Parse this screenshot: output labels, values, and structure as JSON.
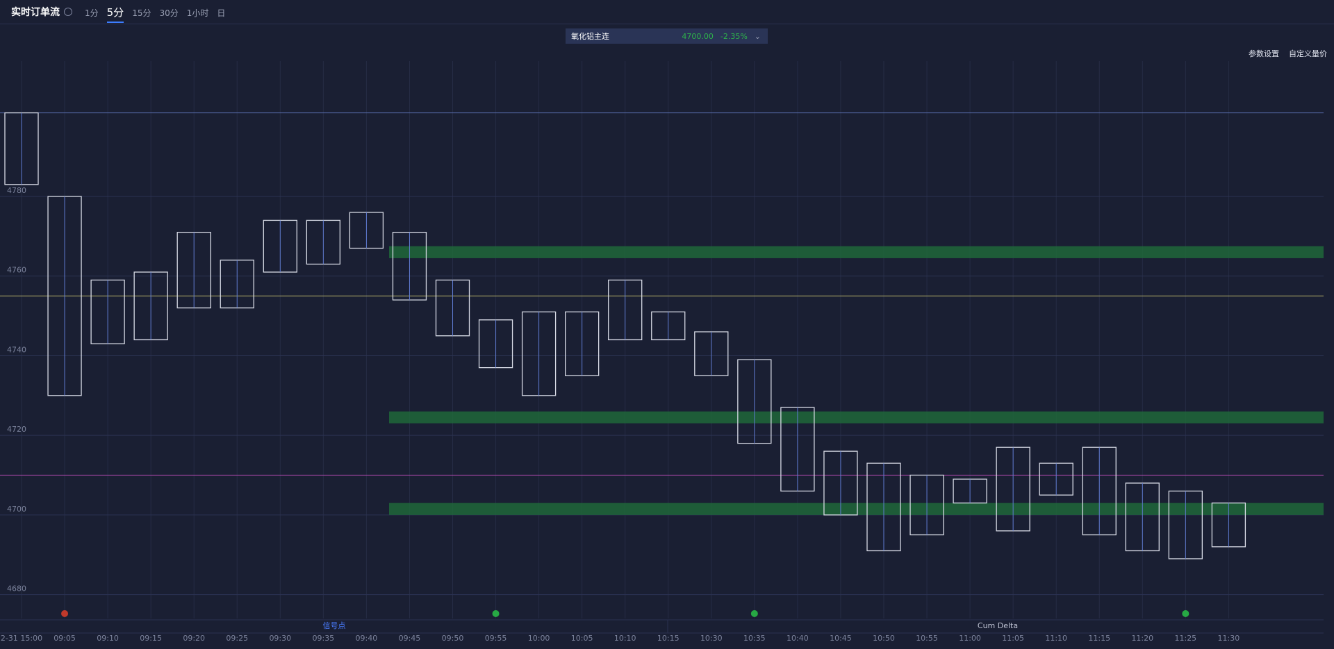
{
  "header": {
    "title": "实时订单流",
    "intervals": [
      "1分",
      "5分",
      "15分",
      "30分",
      "1小时",
      "日"
    ],
    "active_interval": "5分"
  },
  "symbol": {
    "name": "氧化铝主连",
    "price": "4700.00",
    "change": "-2.35%",
    "color": "#2db24a"
  },
  "toolbar": [
    "参数设置",
    "自定义量价"
  ],
  "panels": [
    "信号点",
    "Cum Delta"
  ],
  "chart_data": {
    "type": "footprint",
    "x": [
      "2-31 15:00",
      "09:05",
      "09:10",
      "09:15",
      "09:20",
      "09:25",
      "09:30",
      "09:35",
      "09:40",
      "09:45",
      "09:50",
      "09:55",
      "10:00",
      "10:05",
      "10:10",
      "10:15",
      "10:30",
      "10:35",
      "10:40",
      "10:45",
      "10:50",
      "10:55",
      "11:00",
      "11:05",
      "11:10",
      "11:15",
      "11:20",
      "11:25",
      "11:30"
    ],
    "high": [
      4801,
      4780,
      4759,
      4761,
      4771,
      4764,
      4774,
      4774,
      4776,
      4771,
      4759,
      4749,
      4751,
      4751,
      4759,
      4751,
      4746,
      4739,
      4727,
      4716,
      4713,
      4710,
      4709,
      4717,
      4713,
      4717,
      4708,
      4706,
      4703
    ],
    "low": [
      4783,
      4730,
      4743,
      4744,
      4752,
      4752,
      4761,
      4763,
      4767,
      4754,
      4745,
      4737,
      4730,
      4735,
      4744,
      4744,
      4735,
      4718,
      4706,
      4700,
      4691,
      4695,
      4703,
      4696,
      4705,
      4695,
      4691,
      4689,
      4692
    ],
    "color": "#d8dbe6",
    "ylim": [
      4674,
      4814
    ],
    "yticks": [
      4680,
      4700,
      4720,
      4740,
      4760,
      4780
    ],
    "grid": true,
    "levels": [
      {
        "value": 4801,
        "color": "#5a6fb0"
      },
      {
        "value": 4755,
        "color": "#b8b46a"
      },
      {
        "value": 4710,
        "color": "#c04dbb"
      }
    ],
    "zones": [
      {
        "from": 4764.5,
        "to": 4767.5,
        "color": "#1f6b3a"
      },
      {
        "from": 4723,
        "to": 4726,
        "color": "#1f6b3a"
      },
      {
        "from": 4700,
        "to": 4703,
        "color": "#1f6b3a"
      }
    ],
    "signals": [
      {
        "x": "09:05",
        "color": "#c0392b"
      },
      {
        "x": "09:55",
        "color": "#27a844"
      },
      {
        "x": "10:35",
        "color": "#27a844"
      },
      {
        "x": "11:25",
        "color": "#27a844"
      }
    ]
  }
}
